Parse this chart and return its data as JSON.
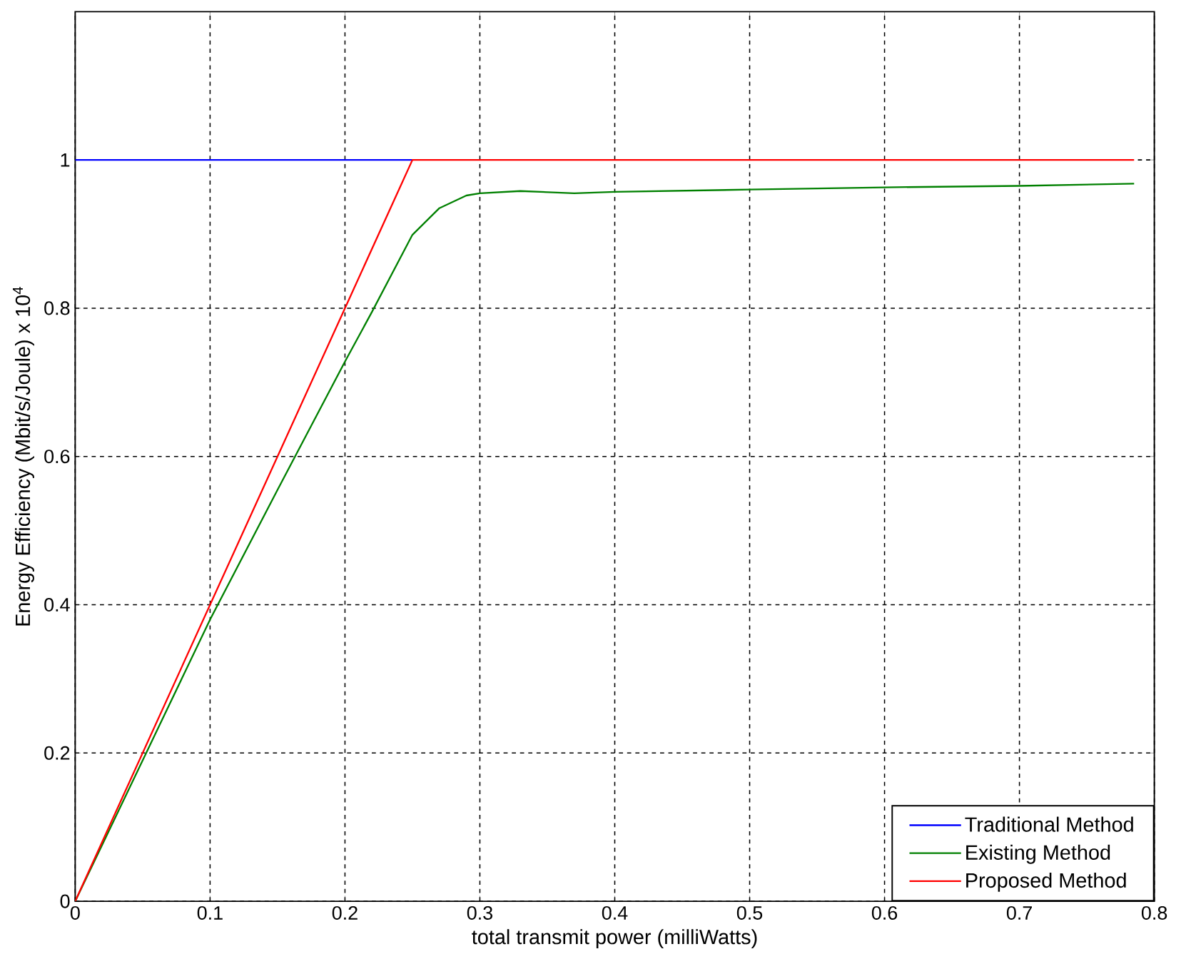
{
  "chart_data": {
    "type": "line",
    "xlabel": "total transmit power (milliWatts)",
    "ylabel": "Energy Efficiency  (Mbit/s/Joule) x 10$^{4}$",
    "xlim": [
      0,
      0.8
    ],
    "ylim": [
      0,
      1.2
    ],
    "xticks": [
      0,
      0.1,
      0.2,
      0.3,
      0.4,
      0.5,
      0.6,
      0.7,
      0.8
    ],
    "yticks": [
      0,
      0.2,
      0.4,
      0.6,
      0.8,
      1
    ],
    "grid": true,
    "legend": "bottom right",
    "line_style": "solid",
    "marker": "none",
    "series": [
      {
        "name": "Traditional Method",
        "color": "#0000ff",
        "x": [
          0,
          0.25
        ],
        "values": [
          1,
          1
        ]
      },
      {
        "name": "Existing Method",
        "color": "#008000",
        "x": [
          0,
          0.05,
          0.1,
          0.15,
          0.2,
          0.22,
          0.25,
          0.27,
          0.29,
          0.3,
          0.33,
          0.37,
          0.4,
          0.5,
          0.6,
          0.7,
          0.785
        ],
        "values": [
          0,
          0.19,
          0.38,
          0.555,
          0.728,
          0.795,
          0.899,
          0.935,
          0.952,
          0.955,
          0.958,
          0.955,
          0.957,
          0.96,
          0.963,
          0.965,
          0.968
        ]
      },
      {
        "name": "Proposed Method",
        "color": "#ff0000",
        "x": [
          0,
          0.05,
          0.1,
          0.15,
          0.2,
          0.25,
          0.785
        ],
        "values": [
          0,
          0.2,
          0.4,
          0.6,
          0.8,
          1,
          1
        ]
      }
    ]
  }
}
